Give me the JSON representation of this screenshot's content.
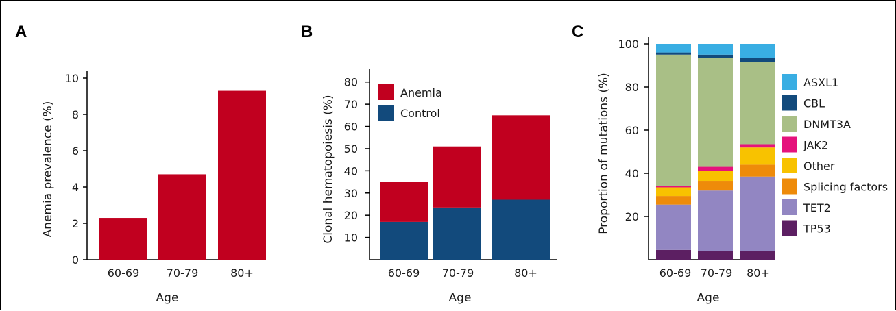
{
  "colors": {
    "anemia": "#c1001f",
    "control": "#124a7c",
    "ASXL1": "#39aee3",
    "CBL": "#124a7c",
    "DNMT3A": "#a9bf86",
    "JAK2": "#e5127c",
    "Other": "#f8c200",
    "Splicing factors": "#ee8b0a",
    "TET2": "#9286c2",
    "TP53": "#5c1f62"
  },
  "chart_data": [
    {
      "panel": "A",
      "type": "bar",
      "categories": [
        "60-69",
        "70-79",
        "80+"
      ],
      "values": [
        2.3,
        4.7,
        9.3
      ],
      "xlabel": "Age",
      "ylabel": "Anemia prevalence (%)",
      "ylim": [
        0,
        10
      ],
      "yticks": [
        0,
        2,
        4,
        6,
        8,
        10
      ]
    },
    {
      "panel": "B",
      "type": "bar",
      "stacked": true,
      "categories": [
        "60-69",
        "70-79",
        "80+"
      ],
      "series": [
        {
          "name": "Control",
          "values": [
            17,
            23.5,
            27
          ]
        },
        {
          "name": "Anemia",
          "values": [
            18,
            27.5,
            38
          ]
        }
      ],
      "legend": [
        "Anemia",
        "Control"
      ],
      "legend_position": "top-left",
      "xlabel": "Age",
      "ylabel": "Clonal hematopoiesis (%)",
      "ylim": [
        0,
        83
      ],
      "yticks": [
        10,
        20,
        30,
        40,
        50,
        60,
        70,
        80
      ]
    },
    {
      "panel": "C",
      "type": "bar",
      "stacked": true,
      "categories": [
        "60-69",
        "70-79",
        "80+"
      ],
      "series": [
        {
          "name": "TP53",
          "values": [
            4.5,
            4,
            4
          ]
        },
        {
          "name": "TET2",
          "values": [
            21,
            28,
            34.5
          ]
        },
        {
          "name": "Splicing factors",
          "values": [
            4,
            4.5,
            5.5
          ]
        },
        {
          "name": "Other",
          "values": [
            4,
            4.5,
            8
          ]
        },
        {
          "name": "JAK2",
          "values": [
            0.5,
            2,
            1.5
          ]
        },
        {
          "name": "DNMT3A",
          "values": [
            61,
            50.5,
            38
          ]
        },
        {
          "name": "CBL",
          "values": [
            1,
            1.5,
            2
          ]
        },
        {
          "name": "ASXL1",
          "values": [
            4,
            5,
            6.5
          ]
        }
      ],
      "legend": [
        "ASXL1",
        "CBL",
        "DNMT3A",
        "JAK2",
        "Other",
        "Splicing factors",
        "TET2",
        "TP53"
      ],
      "legend_position": "right",
      "xlabel": "Age",
      "ylabel": "Proportion of mutations (%)",
      "ylim": [
        0,
        100
      ],
      "yticks": [
        20,
        40,
        60,
        80,
        100
      ]
    }
  ]
}
